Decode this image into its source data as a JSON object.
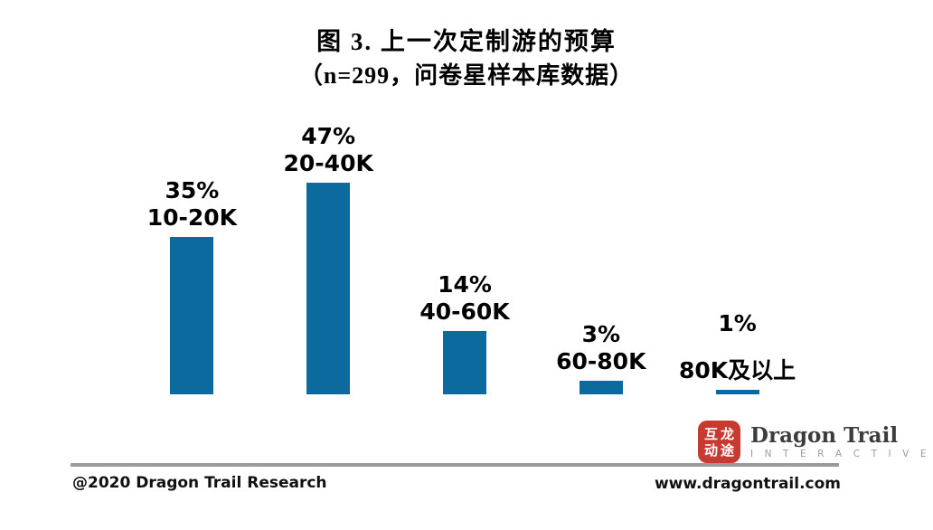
{
  "chart_data": {
    "type": "bar",
    "title": "图 3. 上一次定制游的预算",
    "subtitle": "（n=299，问卷星样本库数据）",
    "categories": [
      "10-20K",
      "20-40K",
      "40-60K",
      "60-80K",
      "80K及以上"
    ],
    "values": [
      35,
      47,
      14,
      3,
      1
    ],
    "value_labels": [
      "35%",
      "47%",
      "14%",
      "3%",
      "1%"
    ],
    "unit": "percent",
    "bar_color": "#0d6a9e",
    "label_color": "#000000",
    "ylim": [
      0,
      50
    ],
    "grid": false,
    "legend": "none",
    "axes_visible": false
  },
  "branding": {
    "seal_line1": "互龙",
    "seal_line2": "动途",
    "seal_color": "#c63a31",
    "logo_name": "Dragon Trail",
    "logo_sub": "I N T E R A C T I V E"
  },
  "footer": {
    "copyright": "@2020 Dragon Trail Research",
    "website": "www.dragontrail.com"
  }
}
